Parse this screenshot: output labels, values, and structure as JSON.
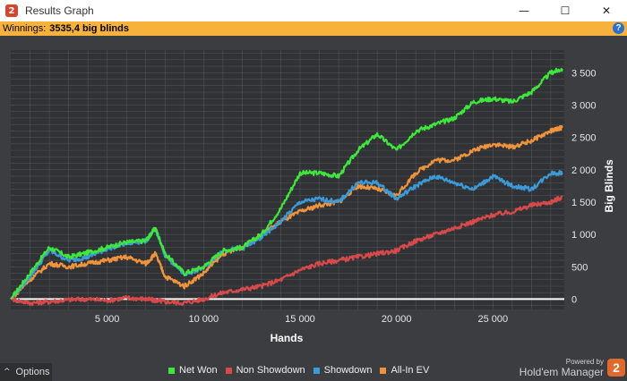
{
  "window": {
    "title": "Results Graph",
    "minimize_glyph": "—",
    "maximize_glyph": "☐",
    "close_glyph": "✕",
    "app_icon_glyph": "2"
  },
  "infobar": {
    "label": "Winnings:",
    "value": "3535,4 big blinds",
    "help_glyph": "?"
  },
  "options": {
    "caret": "^",
    "label": "Options"
  },
  "branding": {
    "powered_by": "Powered by",
    "name": "Hold'em Manager",
    "logo_glyph": "2"
  },
  "colors": {
    "net_won": "#3ee83a",
    "non_showdown": "#d84a4a",
    "showdown": "#3a9bd8",
    "all_in_ev": "#f0933a",
    "zero_line": "#ffffff",
    "grid": "#55585c",
    "plot_bg": "#303235",
    "accent_bar": "#f7b23b"
  },
  "chart_data": {
    "type": "line",
    "title": "",
    "xlabel": "Hands",
    "ylabel": "Big Blinds",
    "xlim": [
      0,
      28700
    ],
    "ylim": [
      -160,
      3850
    ],
    "x_ticks": [
      5000,
      10000,
      15000,
      20000,
      25000
    ],
    "x_tick_labels": [
      "5 000",
      "10 000",
      "15 000",
      "20 000",
      "25 000"
    ],
    "y_ticks": [
      0,
      500,
      1000,
      1500,
      2000,
      2500,
      3000,
      3500
    ],
    "y_tick_labels": [
      "0",
      "500",
      "1 000",
      "1 500",
      "2 000",
      "2 500",
      "3 000",
      "3 500"
    ],
    "grid": true,
    "legend_position": "bottom",
    "x": [
      0,
      1000,
      2000,
      3000,
      4000,
      5000,
      6000,
      7000,
      7500,
      8000,
      9000,
      10000,
      11000,
      12000,
      13000,
      14000,
      15000,
      16000,
      17000,
      18000,
      19000,
      20000,
      21000,
      22000,
      23000,
      24000,
      25000,
      26000,
      27000,
      28000,
      28600
    ],
    "series": [
      {
        "name": "Net Won",
        "values": [
          0,
          400,
          800,
          650,
          720,
          800,
          880,
          900,
          1100,
          700,
          400,
          500,
          750,
          800,
          1000,
          1400,
          1950,
          1950,
          1900,
          2300,
          2550,
          2300,
          2600,
          2700,
          2800,
          3050,
          3100,
          3050,
          3200,
          3500,
          3560
        ]
      },
      {
        "name": "Non Showdown",
        "values": [
          0,
          -60,
          -40,
          -10,
          0,
          -20,
          20,
          0,
          -20,
          -40,
          -60,
          0,
          100,
          150,
          200,
          300,
          450,
          550,
          600,
          650,
          700,
          750,
          900,
          1000,
          1100,
          1200,
          1300,
          1350,
          1450,
          1500,
          1580
        ]
      },
      {
        "name": "Showdown",
        "values": [
          0,
          350,
          750,
          600,
          650,
          780,
          860,
          900,
          1080,
          680,
          380,
          480,
          760,
          780,
          950,
          1200,
          1500,
          1550,
          1500,
          1800,
          1800,
          1550,
          1750,
          1900,
          1800,
          1700,
          1900,
          1750,
          1700,
          1950,
          1950
        ]
      },
      {
        "name": "All-In EV",
        "values": [
          0,
          300,
          550,
          500,
          550,
          600,
          650,
          550,
          700,
          350,
          200,
          400,
          700,
          800,
          1000,
          1200,
          1350,
          1450,
          1500,
          1750,
          1700,
          1600,
          1950,
          2150,
          2150,
          2300,
          2400,
          2350,
          2450,
          2600,
          2650
        ]
      }
    ]
  }
}
